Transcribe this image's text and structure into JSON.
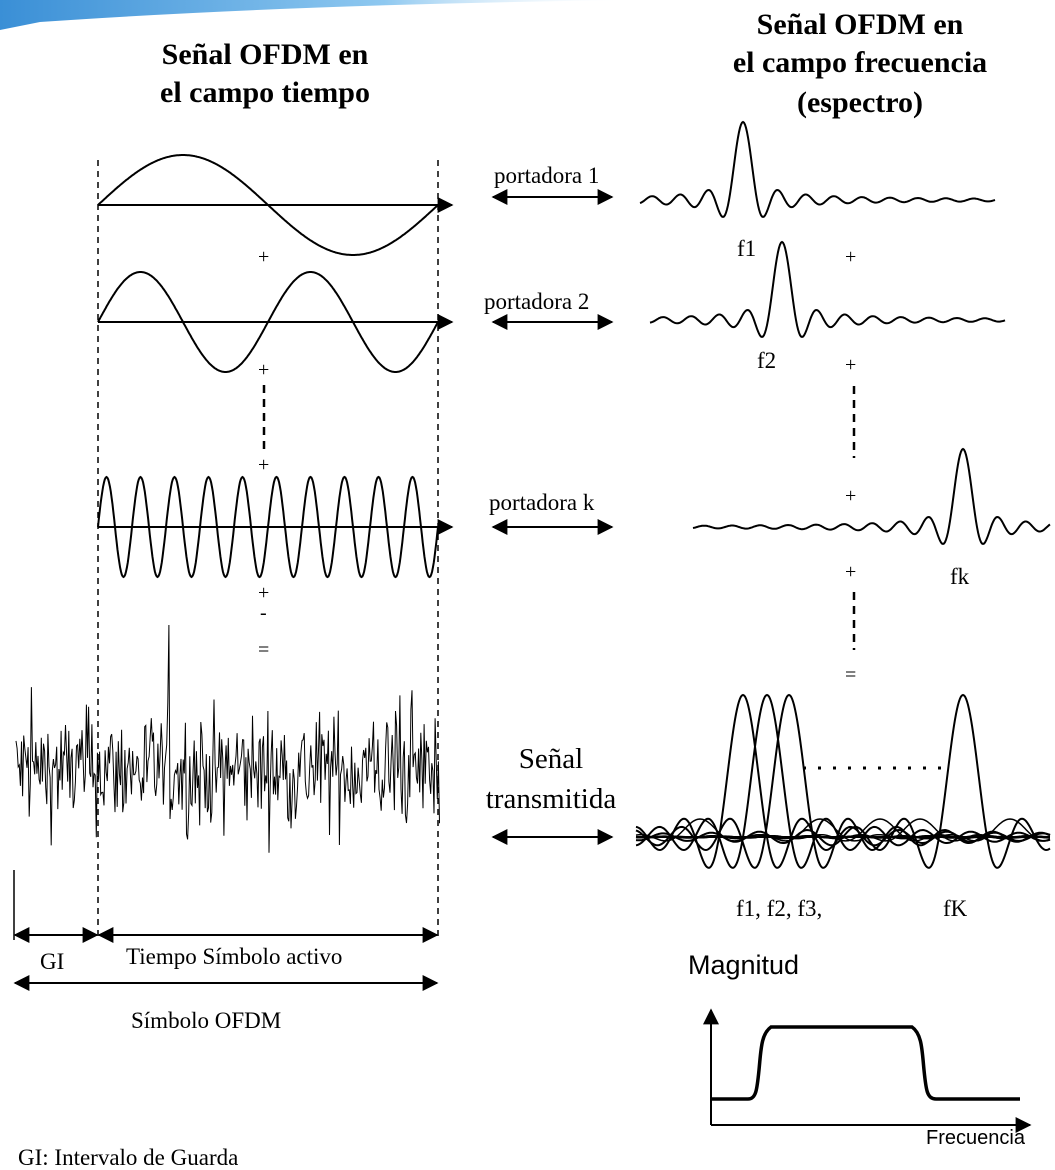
{
  "headings": {
    "time_line1": "Señal OFDM en",
    "time_line2": "el campo tiempo",
    "freq_line1": "Señal OFDM en",
    "freq_line2": "el campo frecuencia",
    "freq_line3": "(espectro)"
  },
  "carriers": [
    {
      "label": "portadora 1",
      "freq_label": "f1"
    },
    {
      "label": "portadora 2",
      "freq_label": "f2"
    },
    {
      "label": "portadora k",
      "freq_label": "fk"
    }
  ],
  "symbols": {
    "plus": "+",
    "equals": "="
  },
  "transmitted": {
    "line1": "Señal",
    "line2": "transmitida"
  },
  "freq_labels": {
    "first_group": "f1, f2, f3,",
    "last": "fK"
  },
  "timing": {
    "gi": "GI",
    "active_time": "Tiempo Símbolo activo",
    "ofdm_symbol": "Símbolo OFDM"
  },
  "magnitude_plot": {
    "ylabel": "Magnitud",
    "xlabel": "Frecuencia"
  },
  "footnote": "GI: Intervalo de Guarda",
  "colors": {
    "ink": "#000000",
    "accent_band": "#4aa3e0"
  }
}
